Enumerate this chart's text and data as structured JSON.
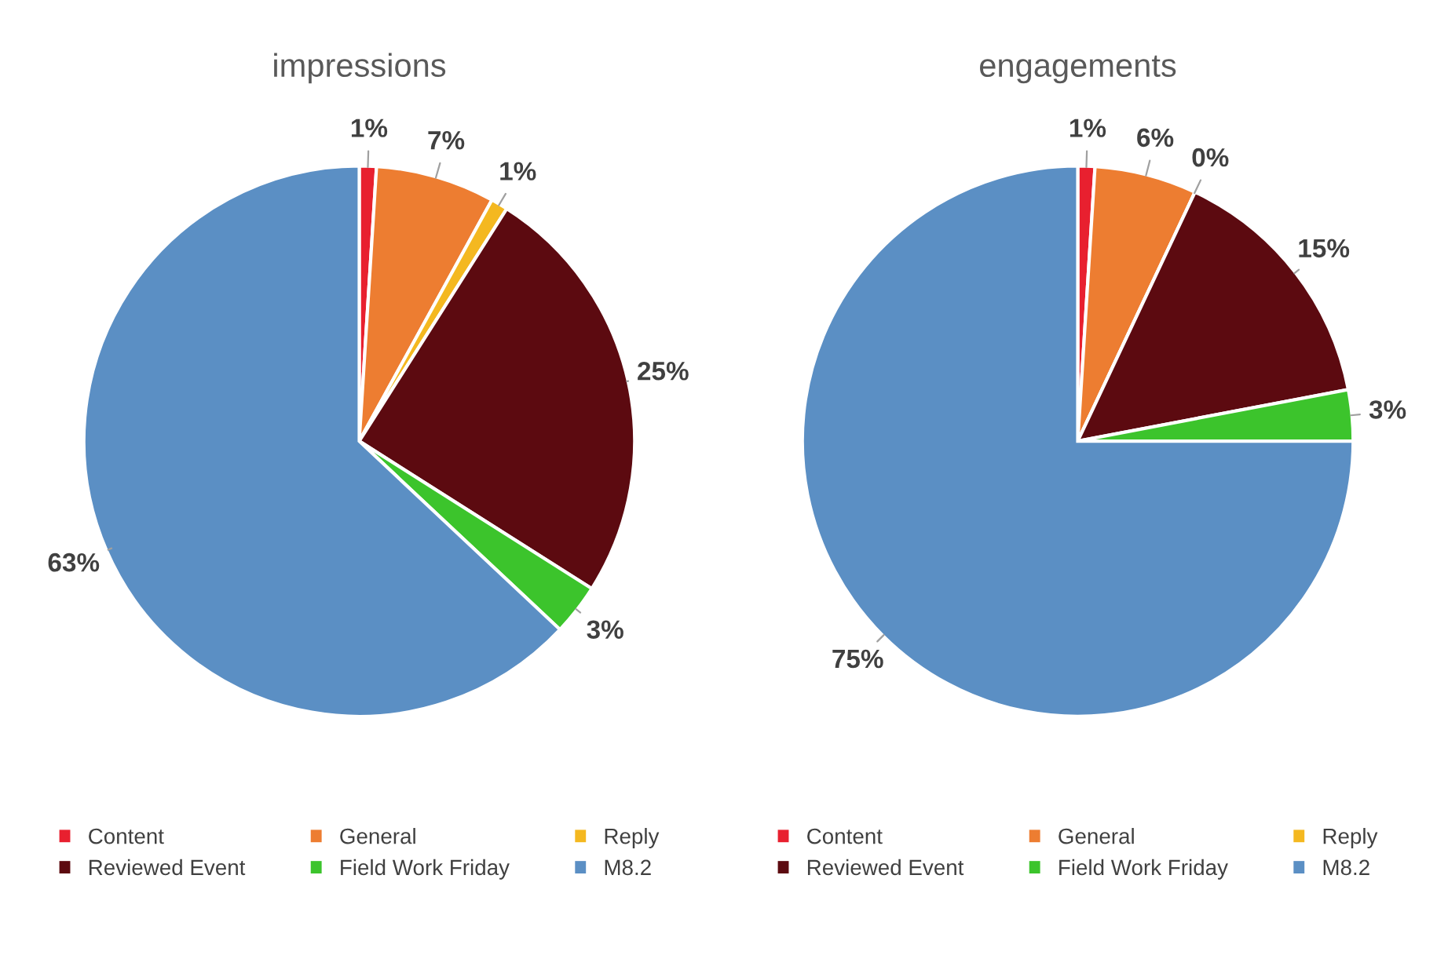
{
  "chart_data": [
    {
      "type": "pie",
      "title": "impressions",
      "categories": [
        "Content",
        "General",
        "Reply",
        "Reviewed Event",
        "Field Work Friday",
        "M8.2"
      ],
      "values": [
        1,
        7,
        1,
        25,
        3,
        63
      ],
      "value_labels": [
        "1%",
        "7%",
        "1%",
        "25%",
        "3%",
        "63%"
      ],
      "colors": [
        "#e8202f",
        "#ed7d31",
        "#f4b820",
        "#5c0a10",
        "#3cc42c",
        "#5b8fc4"
      ],
      "legend": "bottom"
    },
    {
      "type": "pie",
      "title": "engagements",
      "categories": [
        "Content",
        "General",
        "Reply",
        "Reviewed Event",
        "Field Work Friday",
        "M8.2"
      ],
      "values": [
        1,
        6,
        0,
        15,
        3,
        75
      ],
      "value_labels": [
        "1%",
        "6%",
        "0%",
        "15%",
        "3%",
        "75%"
      ],
      "colors": [
        "#e8202f",
        "#ed7d31",
        "#f4b820",
        "#5c0a10",
        "#3cc42c",
        "#5b8fc4"
      ],
      "legend": "bottom"
    }
  ]
}
